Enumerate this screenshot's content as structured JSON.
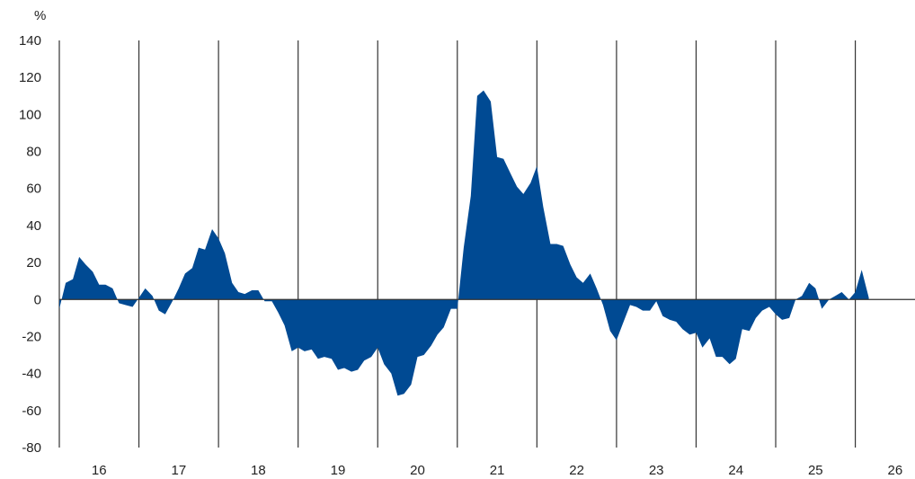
{
  "chart_data": {
    "type": "area",
    "title": "",
    "xlabel": "",
    "ylabel": "%",
    "ylim": [
      -80,
      140
    ],
    "yticks": [
      140,
      120,
      100,
      80,
      60,
      40,
      20,
      0,
      -20,
      -40,
      -60,
      -80
    ],
    "xlim": [
      15.5,
      26.25
    ],
    "year_labels": [
      "16",
      "17",
      "18",
      "19",
      "20",
      "21",
      "22",
      "23",
      "24",
      "25",
      "26"
    ],
    "grid": "vertical year separators",
    "colors": {
      "area": "#004a93",
      "axis": "#333333"
    },
    "series": [
      {
        "x": [
          15.5,
          15.58,
          15.67,
          15.75,
          15.83,
          15.92,
          16.0,
          16.08,
          16.17,
          16.25,
          16.33,
          16.42,
          16.5,
          16.58,
          16.67,
          16.75,
          16.83,
          16.92,
          17.0,
          17.08,
          17.17,
          17.25,
          17.33,
          17.42,
          17.5,
          17.58,
          17.67,
          17.75,
          17.83,
          17.92,
          18.0,
          18.08,
          18.17,
          18.25,
          18.33,
          18.42,
          18.5,
          18.58,
          18.67,
          18.75,
          18.83,
          18.92,
          19.0,
          19.08,
          19.17,
          19.25,
          19.33,
          19.42,
          19.5,
          19.58,
          19.67,
          19.75,
          19.83,
          19.92,
          20.0,
          20.08,
          20.17,
          20.25,
          20.33,
          20.42,
          20.5,
          20.58,
          20.67,
          20.75,
          20.83,
          20.92,
          21.0,
          21.08,
          21.17,
          21.25,
          21.33,
          21.42,
          21.5,
          21.58,
          21.67,
          21.75,
          21.83,
          21.92,
          22.0,
          22.08,
          22.17,
          22.25,
          22.33,
          22.42,
          22.5,
          22.58,
          22.67,
          22.75,
          22.83,
          22.92,
          23.0,
          23.08,
          23.17,
          23.25,
          23.33,
          23.42,
          23.5,
          23.58,
          23.67,
          23.75,
          23.83,
          23.92,
          24.0,
          24.08,
          24.17,
          24.25,
          24.33,
          24.42,
          24.5,
          24.58,
          24.67,
          24.75,
          24.83,
          24.92,
          25.0,
          25.08,
          25.17,
          25.25,
          25.33,
          25.42,
          25.5,
          25.58,
          25.67
        ],
        "values": [
          -5,
          9,
          11,
          23,
          19,
          15,
          8,
          8,
          6,
          -2,
          -3,
          -4,
          1,
          6,
          2,
          -6,
          -8,
          -1,
          6,
          14,
          17,
          28,
          27,
          38,
          33,
          25,
          9,
          4,
          3,
          5,
          5,
          -1,
          -1,
          -7,
          -14,
          -28,
          -26,
          -28,
          -27,
          -32,
          -31,
          -32,
          -38,
          -37,
          -39,
          -38,
          -33,
          -31,
          -26,
          -35,
          -40,
          -52,
          -51,
          -46,
          -31,
          -30,
          -25,
          -19,
          -15,
          -5,
          -5,
          28,
          56,
          110,
          113,
          107,
          77,
          76,
          68,
          61,
          57,
          63,
          72,
          50,
          30,
          30,
          29,
          19,
          12,
          9,
          14,
          6,
          -3,
          -17,
          -22,
          -13,
          -3,
          -4,
          -6,
          -6,
          -1,
          -9,
          -11,
          -12,
          -16,
          -19,
          -18,
          -26,
          -21,
          -31,
          -31,
          -35,
          -32,
          -16,
          -17,
          -10,
          -6,
          -4,
          -8,
          -11,
          -10,
          0,
          2,
          9,
          6,
          -5,
          0,
          2,
          4,
          0,
          4,
          16,
          1
        ]
      }
    ]
  }
}
